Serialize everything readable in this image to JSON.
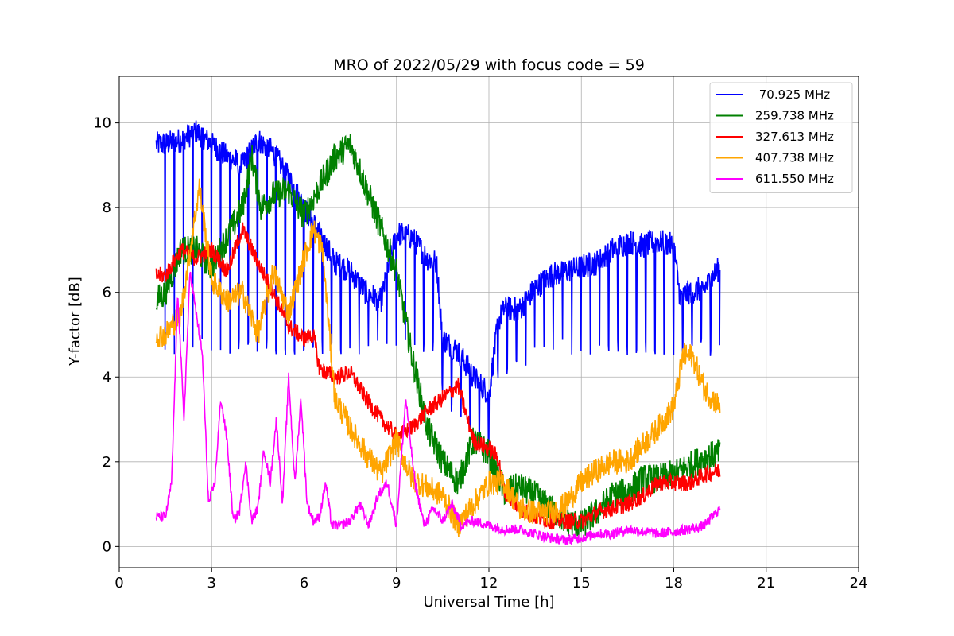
{
  "chart_data": {
    "type": "line",
    "title": "MRO of 2022/05/29 with focus code = 59",
    "xlabel": "Universal Time [h]",
    "ylabel": "Y-factor [dB]",
    "xlim": [
      0,
      24
    ],
    "ylim": [
      -0.5,
      11.1
    ],
    "xticks": [
      0,
      3,
      6,
      9,
      12,
      15,
      18,
      21,
      24
    ],
    "yticks": [
      0,
      2,
      4,
      6,
      8,
      10
    ],
    "grid": true,
    "legend_position": "top-right",
    "series": [
      {
        "name": " 70.925 MHz",
        "color": "#0000ff",
        "x": [
          1.2,
          1.5,
          2.0,
          2.5,
          3.0,
          3.5,
          4.0,
          4.5,
          5.0,
          5.5,
          6.0,
          6.5,
          7.0,
          7.5,
          8.0,
          8.5,
          9.0,
          9.5,
          10.0,
          10.3,
          10.5,
          11.0,
          11.5,
          12.0,
          12.3,
          12.5,
          13.0,
          13.5,
          14.0,
          14.5,
          15.0,
          15.5,
          16.0,
          16.5,
          17.0,
          17.5,
          18.0,
          18.2,
          18.5,
          19.0,
          19.5
        ],
        "values": [
          9.5,
          9.5,
          9.6,
          9.8,
          9.5,
          9.2,
          9.0,
          9.6,
          9.3,
          8.7,
          8.0,
          7.4,
          6.7,
          6.5,
          6.0,
          5.8,
          7.4,
          7.3,
          6.8,
          6.7,
          4.9,
          4.6,
          4.0,
          3.6,
          5.3,
          5.6,
          5.6,
          6.1,
          6.4,
          6.5,
          6.6,
          6.7,
          7.0,
          7.2,
          7.1,
          7.2,
          7.1,
          5.9,
          6.0,
          6.1,
          6.6
        ],
        "dip_interval_h": 0.3,
        "dip_floor": 4.5
      },
      {
        "name": "259.738 MHz",
        "color": "#008000",
        "x": [
          1.2,
          1.5,
          2.0,
          2.5,
          3.0,
          3.5,
          4.0,
          4.3,
          4.6,
          5.0,
          5.5,
          6.0,
          6.5,
          7.0,
          7.5,
          8.0,
          8.5,
          9.0,
          9.5,
          10.0,
          10.5,
          11.0,
          11.5,
          12.0,
          12.5,
          13.0,
          13.5,
          14.0,
          14.5,
          15.0,
          15.5,
          16.0,
          16.5,
          17.0,
          17.5,
          18.0,
          18.5,
          19.0,
          19.5
        ],
        "values": [
          5.8,
          6.0,
          7.0,
          7.0,
          6.6,
          7.3,
          8.0,
          9.2,
          8.0,
          8.3,
          8.4,
          7.8,
          8.5,
          9.2,
          9.5,
          8.5,
          7.5,
          6.5,
          4.5,
          2.8,
          2.0,
          1.5,
          2.5,
          2.2,
          1.3,
          1.4,
          1.2,
          0.9,
          0.6,
          0.5,
          0.8,
          1.2,
          1.3,
          1.6,
          1.6,
          1.7,
          1.9,
          2.1,
          2.2
        ],
        "noise": 0.35
      },
      {
        "name": "327.613 MHz",
        "color": "#ff0000",
        "x": [
          1.2,
          1.5,
          2.0,
          2.5,
          3.0,
          3.5,
          4.0,
          4.5,
          5.0,
          5.5,
          6.0,
          6.3,
          6.5,
          7.0,
          7.5,
          8.0,
          8.5,
          9.0,
          9.5,
          10.0,
          10.5,
          11.0,
          11.5,
          12.0,
          12.3,
          12.5,
          13.0,
          13.5,
          14.0,
          14.5,
          15.0,
          15.5,
          16.0,
          16.5,
          17.0,
          17.5,
          18.0,
          18.5,
          19.0,
          19.5
        ],
        "values": [
          6.4,
          6.4,
          7.0,
          6.8,
          7.0,
          6.5,
          7.5,
          6.7,
          6.0,
          5.2,
          4.9,
          5.0,
          4.2,
          4.0,
          4.1,
          3.5,
          3.0,
          2.6,
          2.8,
          3.2,
          3.5,
          3.8,
          2.5,
          2.3,
          2.1,
          1.3,
          0.9,
          0.7,
          0.6,
          0.6,
          0.6,
          0.8,
          0.9,
          1.0,
          1.2,
          1.5,
          1.5,
          1.5,
          1.7,
          1.8
        ],
        "noise": 0.2
      },
      {
        "name": "407.738 MHz",
        "color": "#ffa500",
        "x": [
          1.2,
          1.5,
          2.0,
          2.3,
          2.6,
          3.0,
          3.5,
          4.0,
          4.5,
          5.0,
          5.5,
          6.0,
          6.3,
          6.6,
          7.0,
          7.5,
          8.0,
          8.5,
          9.0,
          9.5,
          10.0,
          10.5,
          11.0,
          11.5,
          12.0,
          12.5,
          13.0,
          13.5,
          14.0,
          14.5,
          15.0,
          15.5,
          16.0,
          16.5,
          17.0,
          17.5,
          18.0,
          18.3,
          18.6,
          19.0,
          19.5
        ],
        "values": [
          5.0,
          5.0,
          5.5,
          7.0,
          8.5,
          6.3,
          5.8,
          6.0,
          5.0,
          6.5,
          5.5,
          6.8,
          7.5,
          7.0,
          3.5,
          2.8,
          2.2,
          1.7,
          2.5,
          1.6,
          1.4,
          1.2,
          0.5,
          1.0,
          1.5,
          1.5,
          0.9,
          0.8,
          0.8,
          1.0,
          1.5,
          1.8,
          2.0,
          2.0,
          2.4,
          2.8,
          3.3,
          4.5,
          4.5,
          3.7,
          3.3
        ],
        "noise": 0.3
      },
      {
        "name": "611.550 MHz",
        "color": "#ff00ff",
        "x": [
          1.2,
          1.5,
          1.7,
          1.9,
          2.1,
          2.3,
          2.5,
          2.7,
          2.9,
          3.1,
          3.3,
          3.5,
          3.7,
          3.9,
          4.1,
          4.3,
          4.5,
          4.7,
          4.9,
          5.1,
          5.3,
          5.5,
          5.7,
          5.9,
          6.1,
          6.3,
          6.5,
          6.7,
          6.9,
          7.2,
          7.5,
          7.8,
          8.1,
          8.4,
          8.7,
          9.0,
          9.3,
          9.6,
          9.9,
          10.2,
          10.5,
          10.8,
          11.1,
          11.5,
          12.0,
          12.5,
          13.0,
          13.5,
          14.0,
          14.5,
          15.0,
          15.5,
          16.0,
          16.5,
          17.0,
          17.5,
          18.0,
          18.5,
          19.0,
          19.5
        ],
        "values": [
          0.7,
          0.7,
          1.5,
          6.0,
          3.0,
          6.5,
          5.5,
          4.5,
          1.0,
          1.5,
          3.5,
          2.5,
          0.6,
          0.8,
          2.0,
          0.6,
          0.9,
          2.3,
          1.5,
          3.0,
          1.0,
          4.0,
          1.5,
          3.5,
          1.0,
          0.6,
          0.7,
          1.5,
          0.5,
          0.5,
          0.6,
          1.0,
          0.5,
          1.2,
          1.5,
          0.5,
          3.5,
          1.5,
          0.5,
          0.9,
          0.6,
          1.0,
          0.5,
          0.6,
          0.5,
          0.4,
          0.4,
          0.3,
          0.2,
          0.15,
          0.2,
          0.3,
          0.3,
          0.4,
          0.35,
          0.3,
          0.35,
          0.4,
          0.5,
          0.9
        ],
        "noise": 0.12
      }
    ]
  }
}
